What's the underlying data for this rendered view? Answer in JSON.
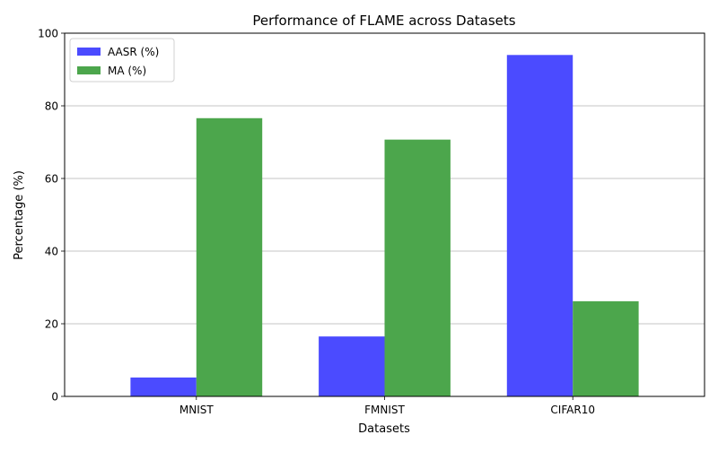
{
  "chart_data": {
    "type": "bar",
    "title": "Performance of FLAME across Datasets",
    "xlabel": "Datasets",
    "ylabel": "Percentage (%)",
    "categories": [
      "MNIST",
      "FMNIST",
      "CIFAR10"
    ],
    "series": [
      {
        "name": "AASR (%)",
        "values": [
          5.2,
          16.5,
          94.0
        ],
        "color": "#4b4bff"
      },
      {
        "name": "MA (%)",
        "values": [
          76.6,
          70.7,
          26.2
        ],
        "color": "#4ca64c"
      }
    ],
    "ylim": [
      0,
      100
    ],
    "yticks": [
      0,
      20,
      40,
      60,
      80,
      100
    ],
    "grid": "y-major",
    "legend": "top-left"
  }
}
